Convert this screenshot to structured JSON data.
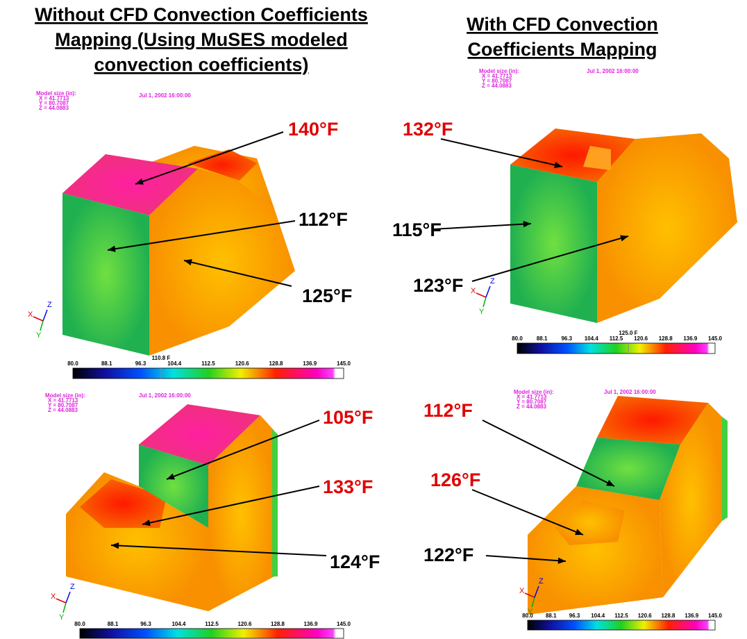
{
  "headings": [
    {
      "lines": [
        "Without CFD Convection Coefficients",
        "Mapping (Using MuSES modeled",
        "convection coefficients)"
      ]
    },
    {
      "lines": [
        "With CFD Convection",
        "Coefficients Mapping"
      ]
    }
  ],
  "panels": [
    {
      "model_size": {
        "title": "Model size (in):",
        "x": "X = 41.7713",
        "y": "Y = 80.7087",
        "z": "Z = 44.0883"
      },
      "date": "Jul 1, 2002 16:00:00",
      "triad": [
        "X",
        "Y",
        "Z"
      ],
      "colorbar": {
        "marker": "110.8 F",
        "ticks": [
          "80.0",
          "88.1",
          "96.3",
          "104.4",
          "112.5",
          "120.6",
          "128.8",
          "136.9",
          "145.0"
        ]
      },
      "annotations": [
        {
          "label": "140°F",
          "color": "#e00000"
        },
        {
          "label": "112°F",
          "color": "#000000"
        },
        {
          "label": "125°F",
          "color": "#000000"
        }
      ]
    },
    {
      "model_size": {
        "title": "Model size (in):",
        "x": "X = 41.7713",
        "y": "Y = 80.7087",
        "z": "Z = 44.0883"
      },
      "date": "Jul 1, 2002 16:00:00",
      "triad": [
        "X",
        "Y",
        "Z"
      ],
      "colorbar": {
        "marker": "125.0 F",
        "ticks": [
          "80.0",
          "88.1",
          "96.3",
          "104.4",
          "112.5",
          "120.6",
          "128.8",
          "136.9",
          "145.0"
        ]
      },
      "annotations": [
        {
          "label": "132°F",
          "color": "#e00000"
        },
        {
          "label": "115°F",
          "color": "#000000"
        },
        {
          "label": "123°F",
          "color": "#000000"
        }
      ]
    },
    {
      "model_size": {
        "title": "Model size (in):",
        "x": "X = 41.7713",
        "y": "Y = 80.7087",
        "z": "Z = 44.0883"
      },
      "date": "Jul 1, 2002 16:00:00",
      "triad": [
        "X",
        "Y",
        "Z"
      ],
      "colorbar": {
        "ticks": [
          "80.0",
          "88.1",
          "96.3",
          "104.4",
          "112.5",
          "120.6",
          "128.8",
          "136.9",
          "145.0"
        ]
      },
      "annotations": [
        {
          "label": "105°F",
          "color": "#e00000"
        },
        {
          "label": "133°F",
          "color": "#e00000"
        },
        {
          "label": "124°F",
          "color": "#000000"
        }
      ]
    },
    {
      "model_size": {
        "title": "Model size (in):",
        "x": "X = 41.7713",
        "y": "Y = 80.7087",
        "z": "Z = 44.0883"
      },
      "date": "Jul 1, 2002 16:00:00",
      "triad": [
        "X",
        "Y",
        "Z"
      ],
      "colorbar": {
        "ticks": [
          "80.0",
          "88.1",
          "96.3",
          "104.4",
          "112.5",
          "120.6",
          "128.8",
          "136.9",
          "145.0"
        ]
      },
      "annotations": [
        {
          "label": "112°F",
          "color": "#e00000"
        },
        {
          "label": "126°F",
          "color": "#e00000"
        },
        {
          "label": "122°F",
          "color": "#000000"
        }
      ]
    }
  ]
}
